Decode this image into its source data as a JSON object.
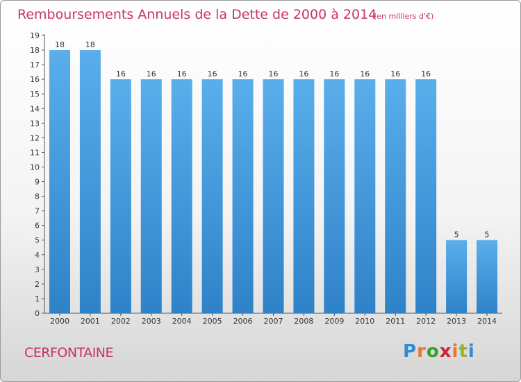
{
  "title": "Remboursements Annuels de la Dette de 2000 à 2014",
  "unit": "(en milliers d'€)",
  "commune": "CERFONTAINE",
  "logo": {
    "letters": [
      "P",
      "r",
      "o",
      "x",
      "i",
      "t",
      "i"
    ],
    "colors": [
      "#2f8bd8",
      "#e9772a",
      "#2fa12f",
      "#cf2030",
      "#e9772a",
      "#8cb82b",
      "#2f8bd8"
    ]
  },
  "colors": {
    "bar": "#5aaeeb",
    "bar_dark": "#2f82c8",
    "text": "#c8326a"
  },
  "chart_data": {
    "type": "bar",
    "title": "Remboursements Annuels de la Dette de 2000 à 2014",
    "xlabel": "",
    "ylabel": "en milliers d'€",
    "categories": [
      "2000",
      "2001",
      "2002",
      "2003",
      "2004",
      "2005",
      "2006",
      "2007",
      "2008",
      "2009",
      "2010",
      "2011",
      "2012",
      "2013",
      "2014"
    ],
    "values": [
      18,
      18,
      16,
      16,
      16,
      16,
      16,
      16,
      16,
      16,
      16,
      16,
      16,
      5,
      5
    ],
    "ylim": [
      0,
      19
    ],
    "yticks": [
      0,
      1,
      2,
      3,
      4,
      5,
      6,
      7,
      8,
      9,
      10,
      11,
      12,
      13,
      14,
      15,
      16,
      17,
      18,
      19
    ],
    "grid": false,
    "legend": "none"
  }
}
